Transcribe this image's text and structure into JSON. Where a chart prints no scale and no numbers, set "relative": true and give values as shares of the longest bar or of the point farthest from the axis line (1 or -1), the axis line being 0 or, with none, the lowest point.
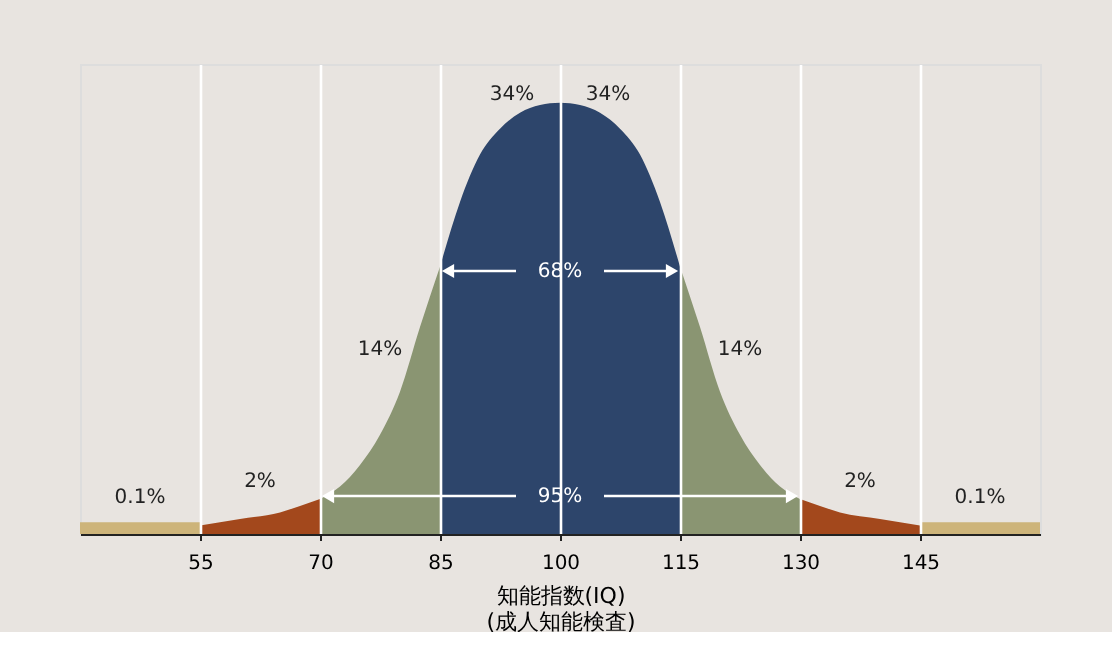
{
  "chart_data": {
    "type": "area",
    "relative": true,
    "xlabel": "知能指数(IQ)\n(成人知能検査)",
    "xlim": [
      40,
      160
    ],
    "xticks": [
      55,
      70,
      85,
      100,
      115,
      130,
      145
    ],
    "grid": "x",
    "series": [
      {
        "color": "#cdb47a",
        "x": [
          40,
          55
        ],
        "values": [
          0.027,
          0.027
        ]
      },
      {
        "color": "#a3481c",
        "x": [
          55,
          60,
          65,
          67.5,
          70
        ],
        "values": [
          0.02,
          0.035,
          0.05,
          0.065,
          0.081
        ]
      },
      {
        "color": "#8a9572",
        "x": [
          70,
          72.5,
          75,
          77.5,
          80,
          82.5,
          85
        ],
        "values": [
          0.081,
          0.11,
          0.16,
          0.23,
          0.33,
          0.48,
          0.62
        ]
      },
      {
        "color": "#2d456b",
        "x": [
          85,
          87.5,
          90,
          92.5,
          95,
          97.5,
          100,
          102.5,
          105,
          107.5,
          110,
          112.5,
          115
        ],
        "values": [
          0.62,
          0.77,
          0.88,
          0.94,
          0.977,
          0.995,
          1,
          0.995,
          0.977,
          0.94,
          0.88,
          0.77,
          0.62
        ]
      },
      {
        "color": "#8a9572",
        "x": [
          115,
          117.5,
          120,
          122.5,
          125,
          127.5,
          130
        ],
        "values": [
          0.62,
          0.48,
          0.33,
          0.23,
          0.16,
          0.11,
          0.081
        ]
      },
      {
        "color": "#a3481c",
        "x": [
          130,
          132.5,
          135,
          140,
          145
        ],
        "values": [
          0.081,
          0.065,
          0.05,
          0.035,
          0.02
        ]
      },
      {
        "color": "#cdb47a",
        "x": [
          145,
          160
        ],
        "values": [
          0.027,
          0.027
        ]
      }
    ],
    "annotations": [
      "34%",
      "34%",
      "14%",
      "14%",
      "2%",
      "2%",
      "0.1%",
      "0.1%",
      "68%",
      "95%"
    ]
  }
}
